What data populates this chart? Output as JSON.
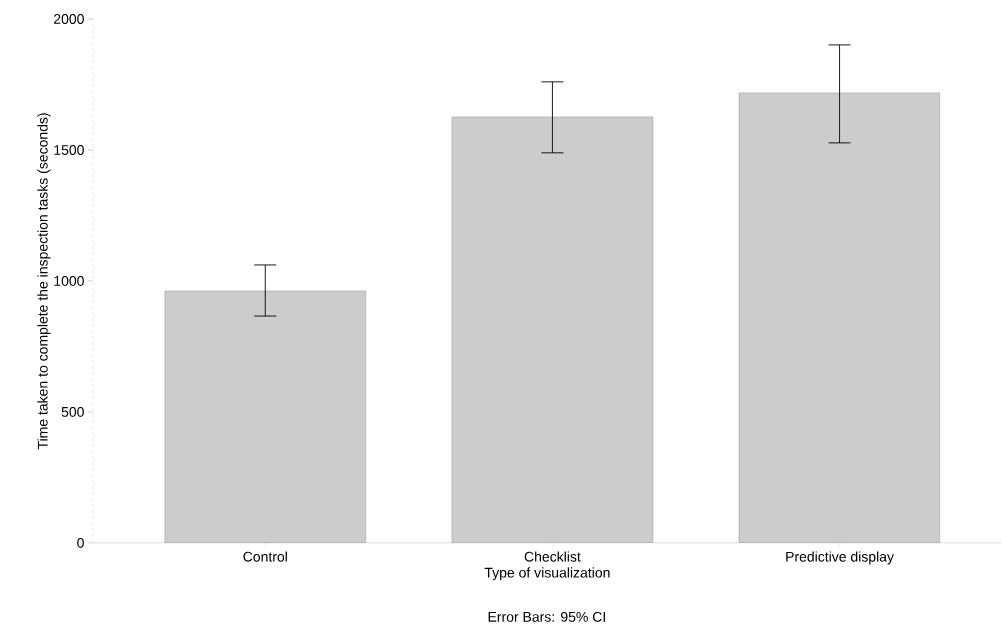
{
  "chart_data": {
    "type": "bar",
    "xlabel": "Type of visualization",
    "ylabel": "Time taken to complete the inspection tasks (seconds)",
    "annotations": [
      "Error Bars: 95% CI"
    ],
    "categories": [
      "Control",
      "Checklist",
      "Predictive display"
    ],
    "values": [
      962,
      1626,
      1718
    ],
    "errors": [
      [
        866,
        1061
      ],
      [
        1489,
        1760
      ],
      [
        1527,
        1901
      ]
    ],
    "color": "#cccccc",
    "ylim": [
      0,
      2000
    ],
    "yticks": [
      0,
      500,
      1000,
      1500,
      2000
    ],
    "grid": false
  }
}
